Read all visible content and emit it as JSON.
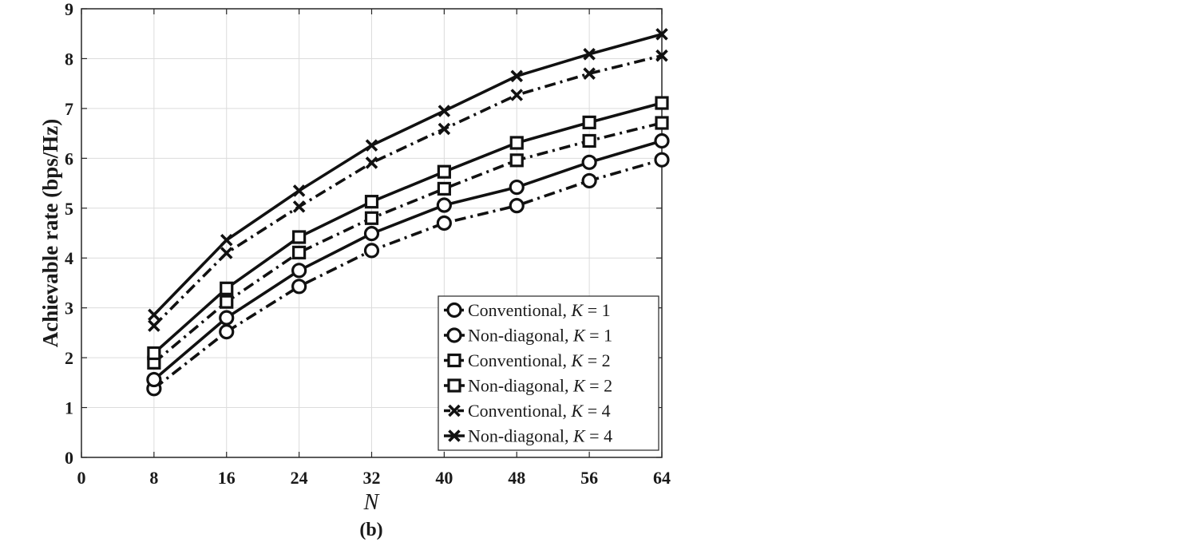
{
  "caption": "(b)",
  "chart_data": {
    "type": "line",
    "xlabel": "N",
    "ylabel": "Achievable rate (bps/Hz)",
    "x": [
      8,
      16,
      24,
      32,
      40,
      48,
      56,
      64
    ],
    "xlim": [
      0,
      64
    ],
    "ylim": [
      0,
      9
    ],
    "xticks": [
      "0",
      "8",
      "16",
      "24",
      "32",
      "40",
      "48",
      "56",
      "64"
    ],
    "yticks": [
      "0",
      "1",
      "2",
      "3",
      "4",
      "5",
      "6",
      "7",
      "8",
      "9"
    ],
    "grid": true,
    "legend_position": "bottom-right",
    "series": [
      {
        "name": "Conventional, K = 1",
        "name_prefix": "Conventional, ",
        "name_var": "K",
        "name_eq": " = 1",
        "marker": "circle",
        "linestyle": "dashdot",
        "values": [
          1.38,
          2.52,
          3.43,
          4.15,
          4.7,
          5.05,
          5.55,
          5.97
        ]
      },
      {
        "name": "Non-diagonal, K = 1",
        "name_prefix": "Non-diagonal, ",
        "name_var": "K",
        "name_eq": " = 1",
        "marker": "circle",
        "linestyle": "solid",
        "values": [
          1.56,
          2.8,
          3.75,
          4.49,
          5.06,
          5.42,
          5.92,
          6.35
        ]
      },
      {
        "name": "Conventional, K = 2",
        "name_prefix": "Conventional, ",
        "name_var": "K",
        "name_eq": " = 2",
        "marker": "square",
        "linestyle": "dashdot",
        "values": [
          1.9,
          3.12,
          4.11,
          4.8,
          5.39,
          5.96,
          6.35,
          6.71
        ]
      },
      {
        "name": "Non-diagonal, K = 2",
        "name_prefix": "Non-diagonal, ",
        "name_var": "K",
        "name_eq": " = 2",
        "marker": "square",
        "linestyle": "solid",
        "values": [
          2.09,
          3.39,
          4.42,
          5.13,
          5.73,
          6.31,
          6.72,
          7.11
        ]
      },
      {
        "name": "Conventional, K = 4",
        "name_prefix": "Conventional, ",
        "name_var": "K",
        "name_eq": " = 4",
        "marker": "x",
        "linestyle": "dashdot",
        "values": [
          2.64,
          4.1,
          5.03,
          5.91,
          6.59,
          7.27,
          7.7,
          8.06
        ]
      },
      {
        "name": "Non-diagonal, K = 4",
        "name_prefix": "Non-diagonal, ",
        "name_var": "K",
        "name_eq": " = 4",
        "marker": "x",
        "linestyle": "solid",
        "values": [
          2.86,
          4.36,
          5.35,
          6.26,
          6.95,
          7.65,
          8.09,
          8.49
        ]
      }
    ]
  }
}
